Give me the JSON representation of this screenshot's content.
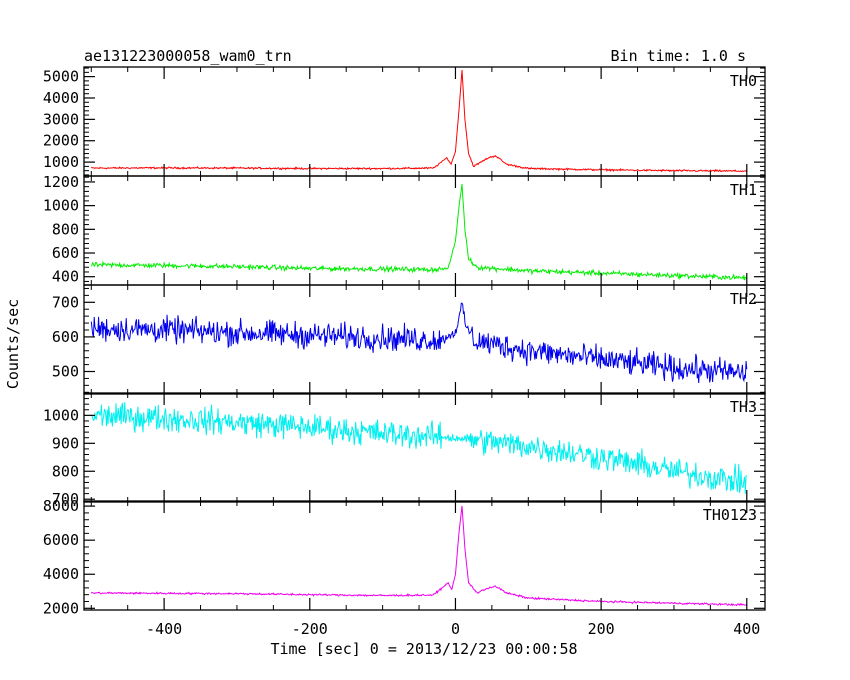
{
  "chart_data": {
    "type": "line",
    "title": "ae131223000058_wam0_trn",
    "subtitle": "Bin time: 1.0 s",
    "xlabel": "Time [sec] 0 = 2013/12/23 00:00:58",
    "ylabel": "Counts/sec",
    "xlim": [
      -510,
      425
    ],
    "x_ticks": [
      -400,
      -200,
      0,
      200,
      400
    ],
    "grid": false,
    "panels": [
      {
        "name": "TH0",
        "color": "#ff0000",
        "ylim": [
          350,
          5450
        ],
        "y_ticks": [
          1000,
          2000,
          3000,
          4000,
          5000
        ],
        "points": [
          [
            -500,
            720
          ],
          [
            -400,
            730
          ],
          [
            -300,
            720
          ],
          [
            -200,
            700
          ],
          [
            -100,
            700
          ],
          [
            -30,
            720
          ],
          [
            -12,
            1200
          ],
          [
            -6,
            900
          ],
          [
            0,
            1500
          ],
          [
            5,
            3500
          ],
          [
            9,
            5300
          ],
          [
            13,
            3000
          ],
          [
            18,
            1400
          ],
          [
            25,
            800
          ],
          [
            45,
            1200
          ],
          [
            55,
            1300
          ],
          [
            70,
            900
          ],
          [
            100,
            700
          ],
          [
            200,
            640
          ],
          [
            300,
            600
          ],
          [
            400,
            580
          ]
        ]
      },
      {
        "name": "TH1",
        "color": "#00ee00",
        "ylim": [
          330,
          1250
        ],
        "y_ticks": [
          400,
          600,
          800,
          1000,
          1200
        ],
        "points": [
          [
            -500,
            500
          ],
          [
            -400,
            495
          ],
          [
            -300,
            485
          ],
          [
            -200,
            470
          ],
          [
            -100,
            465
          ],
          [
            -30,
            460
          ],
          [
            -10,
            470
          ],
          [
            0,
            700
          ],
          [
            5,
            1000
          ],
          [
            9,
            1180
          ],
          [
            13,
            800
          ],
          [
            18,
            550
          ],
          [
            30,
            480
          ],
          [
            100,
            450
          ],
          [
            200,
            430
          ],
          [
            300,
            410
          ],
          [
            400,
            390
          ]
        ]
      },
      {
        "name": "TH2",
        "color": "#0000ee",
        "ylim": [
          435,
          750
        ],
        "y_ticks": [
          500,
          600,
          700
        ],
        "points": [
          [
            -500,
            625
          ],
          [
            -400,
            620
          ],
          [
            -300,
            612
          ],
          [
            -200,
            605
          ],
          [
            -100,
            597
          ],
          [
            -20,
            590
          ],
          [
            0,
            615
          ],
          [
            6,
            660
          ],
          [
            9,
            700
          ],
          [
            13,
            640
          ],
          [
            25,
            590
          ],
          [
            100,
            560
          ],
          [
            200,
            535
          ],
          [
            300,
            510
          ],
          [
            400,
            495
          ]
        ]
      },
      {
        "name": "TH3",
        "color": "#00f0f0",
        "ylim": [
          690,
          1080
        ],
        "y_ticks": [
          700,
          800,
          900,
          1000
        ],
        "points": [
          [
            -500,
            1000
          ],
          [
            -400,
            990
          ],
          [
            -300,
            975
          ],
          [
            -200,
            958
          ],
          [
            -100,
            935
          ],
          [
            0,
            920
          ],
          [
            50,
            905
          ],
          [
            100,
            890
          ],
          [
            200,
            850
          ],
          [
            300,
            800
          ],
          [
            400,
            760
          ]
        ]
      },
      {
        "name": "TH0123",
        "color": "#ee00ee",
        "ylim": [
          1900,
          8300
        ],
        "y_ticks": [
          2000,
          4000,
          6000,
          8000
        ],
        "points": [
          [
            -500,
            2900
          ],
          [
            -400,
            2880
          ],
          [
            -300,
            2860
          ],
          [
            -200,
            2800
          ],
          [
            -100,
            2750
          ],
          [
            -30,
            2780
          ],
          [
            -10,
            3500
          ],
          [
            -5,
            3100
          ],
          [
            0,
            4000
          ],
          [
            5,
            6500
          ],
          [
            9,
            8000
          ],
          [
            13,
            5500
          ],
          [
            18,
            3500
          ],
          [
            30,
            2900
          ],
          [
            45,
            3200
          ],
          [
            55,
            3300
          ],
          [
            70,
            2900
          ],
          [
            100,
            2600
          ],
          [
            200,
            2400
          ],
          [
            300,
            2300
          ],
          [
            400,
            2200
          ]
        ]
      }
    ]
  }
}
